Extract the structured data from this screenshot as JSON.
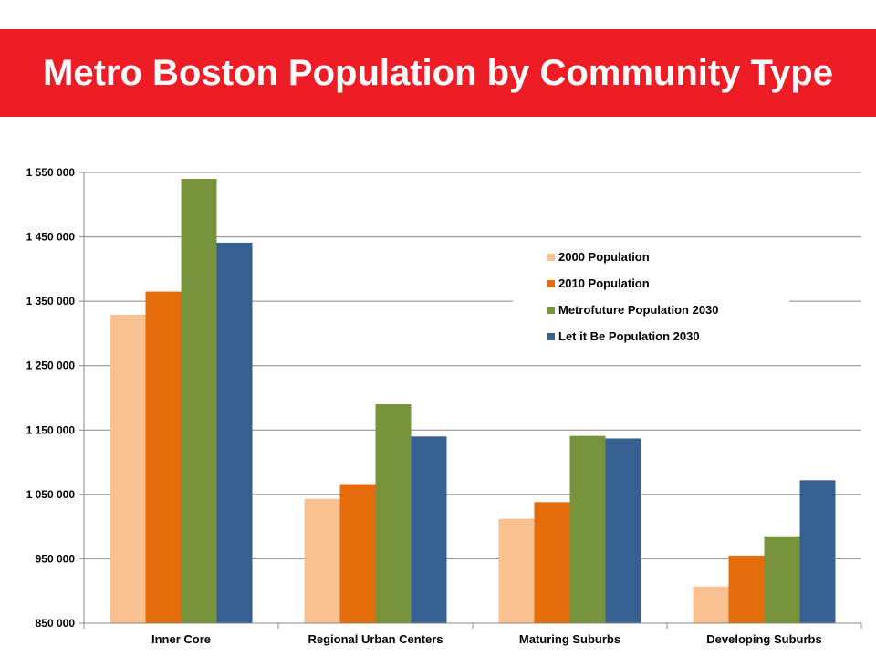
{
  "header": {
    "title": "Metro Boston Population by Community Type",
    "background_color": "#ee1c24",
    "text_color": "#ffffff"
  },
  "chart_data": {
    "type": "bar",
    "title": "Metro Boston Population by Community Type",
    "xlabel": "",
    "ylabel": "",
    "ylim": [
      850000,
      1550000
    ],
    "yticks": [
      850000,
      950000,
      1050000,
      1150000,
      1250000,
      1350000,
      1450000,
      1550000
    ],
    "ytick_labels": [
      "850 000",
      "950 000",
      "1 050 000",
      "1 150 000",
      "1 250 000",
      "1 350 000",
      "1 450 000",
      "1 550 000"
    ],
    "categories": [
      "Inner Core",
      "Regional Urban Centers",
      "Maturing Suburbs",
      "Developing Suburbs"
    ],
    "series": [
      {
        "name": "2000 Population",
        "color": "#f9c090",
        "values": [
          1329000,
          1043000,
          1012000,
          907000
        ]
      },
      {
        "name": "2010 Population",
        "color": "#e46c0a",
        "values": [
          1365000,
          1066000,
          1038000,
          955000
        ]
      },
      {
        "name": "Metrofuture Population 2030",
        "color": "#77933c",
        "values": [
          1540000,
          1190000,
          1141000,
          985000
        ]
      },
      {
        "name": "Let it Be Population 2030",
        "color": "#376092",
        "values": [
          1441000,
          1140000,
          1137000,
          1072000
        ]
      }
    ],
    "grid": true,
    "legend_position": "upper-right-inside"
  }
}
